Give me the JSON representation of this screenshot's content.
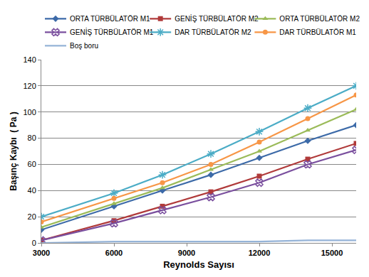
{
  "chart_data": {
    "type": "line",
    "x_label": "Reynolds Sayısı",
    "y_label": "Başınç Kaybı  ( Pa )",
    "x": [
      3000,
      6000,
      8000,
      10000,
      12000,
      14000,
      16000
    ],
    "series": [
      {
        "name": "ORTA TÜRBÜLATÖR M1",
        "color": "#3C6AA8",
        "marker": "diamond",
        "values": [
          10,
          28,
          40,
          52,
          65,
          78,
          90
        ]
      },
      {
        "name": "GENİŞ TÜRBÜLATÖR M2",
        "color": "#B03A3A",
        "marker": "square",
        "values": [
          2,
          17,
          28,
          39,
          51,
          64,
          76
        ]
      },
      {
        "name": "ORTA TÜRBÜLATÖR M2",
        "color": "#9BBB59",
        "marker": "triangle-up",
        "values": [
          12,
          30,
          42,
          56,
          70,
          86,
          102
        ]
      },
      {
        "name": "GENİŞ TÜRBÜLATÖR M1",
        "color": "#7A4F9E",
        "marker": "x",
        "values": [
          2,
          15,
          25,
          35,
          46,
          60,
          71
        ]
      },
      {
        "name": "DAR TÜRBÜLATÖR M2",
        "color": "#4BACC6",
        "marker": "asterisk",
        "values": [
          20,
          38,
          52,
          68,
          85,
          103,
          120
        ]
      },
      {
        "name": "DAR TÜRBÜLATÖR M1",
        "color": "#F79646",
        "marker": "circle",
        "values": [
          16,
          34,
          46,
          60,
          77,
          95,
          113
        ]
      },
      {
        "name": "Boş boru",
        "color": "#95B3D7",
        "marker": "none",
        "values": [
          0,
          1,
          1,
          1,
          1,
          2,
          2
        ]
      }
    ],
    "xlim": [
      3000,
      16000
    ],
    "xticks": [
      3000,
      6000,
      9000,
      12000,
      15000
    ],
    "ylim": [
      0,
      140
    ],
    "yticks": [
      0,
      20,
      40,
      60,
      80,
      100,
      120,
      140
    ],
    "grid": true,
    "legend": "top"
  }
}
